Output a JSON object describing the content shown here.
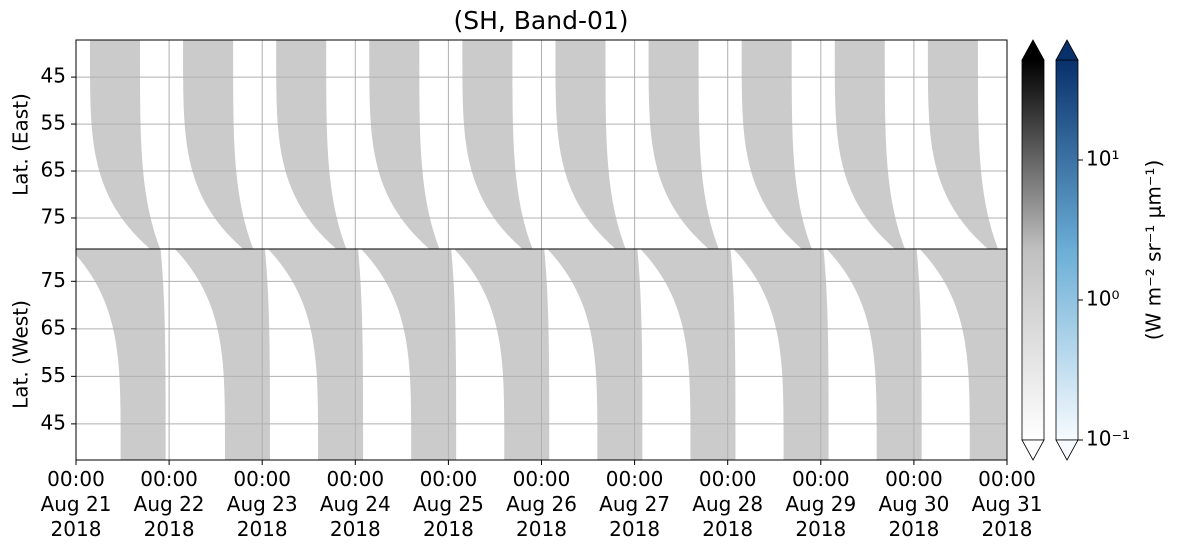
{
  "chart_data": {
    "type": "heatmap",
    "title": "(SH, Band-01)",
    "xlim": [
      0,
      240
    ],
    "xticks": [
      {
        "value": 0,
        "label": "00:00\nAug 21\n2018"
      },
      {
        "value": 24,
        "label": "00:00\nAug 22\n2018"
      },
      {
        "value": 48,
        "label": "00:00\nAug 23\n2018"
      },
      {
        "value": 72,
        "label": "00:00\nAug 24\n2018"
      },
      {
        "value": 96,
        "label": "00:00\nAug 25\n2018"
      },
      {
        "value": 120,
        "label": "00:00\nAug 26\n2018"
      },
      {
        "value": 144,
        "label": "00:00\nAug 27\n2018"
      },
      {
        "value": 168,
        "label": "00:00\nAug 28\n2018"
      },
      {
        "value": 192,
        "label": "00:00\nAug 29\n2018"
      },
      {
        "value": 216,
        "label": "00:00\nAug 30\n2018"
      },
      {
        "value": 240,
        "label": "00:00\nAug 31\n2018"
      }
    ],
    "grid": true,
    "panels": [
      {
        "ylabel": "Lat. (East)",
        "ylim": [
          37.1,
          81.6
        ],
        "inverted": true,
        "yticks": [
          45,
          55,
          65,
          75
        ],
        "color": "#cbcbcb",
        "swath_starts": [
          3.6,
          27.6,
          51.6,
          75.6,
          99.6,
          123.6,
          147.6,
          171.6,
          195.6,
          219.6
        ],
        "swath_width": 12.9,
        "left_shift": 15.5,
        "right_shift": 5.2
      },
      {
        "ylabel": "Lat. (West)",
        "ylim": [
          37.4,
          81.8
        ],
        "inverted": false,
        "yticks": [
          45,
          55,
          65,
          75
        ],
        "color": "#cbcbcb",
        "swath_starts": [
          11.5,
          38.4,
          62.4,
          86.4,
          110.4,
          134.4,
          158.4,
          182.4,
          206.4,
          230.4
        ],
        "swath_width": 11.6,
        "left_shift": -12.9,
        "right_shift": -1.3
      }
    ],
    "clim": [
      0.1,
      51.8
    ],
    "log": true,
    "colorbars": [
      {
        "colors": [
          "#ffffff",
          "#c0c0c0",
          "#000000"
        ]
      },
      {
        "colors": [
          "#f7fbff",
          "#6baed6",
          "#08306b"
        ]
      }
    ],
    "cticks": [
      {
        "value": 0.1,
        "label": "10⁻¹"
      },
      {
        "value": 1,
        "label": "10⁰"
      },
      {
        "value": 10,
        "label": "10¹"
      }
    ],
    "clabel": "(W m⁻² sr⁻¹ μm⁻¹)"
  }
}
